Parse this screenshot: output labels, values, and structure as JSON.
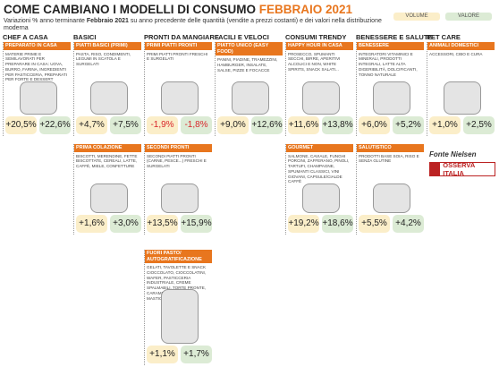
{
  "header": {
    "title": "COME CAMBIANO I MODELLI DI CONSUMO",
    "title_highlight": "FEBBRAIO 2021",
    "subtitle_start": "Variazioni % anno terminante",
    "subtitle_bold": "Febbraio 2021",
    "subtitle_end": "su anno precedente delle quantità (vendite a prezzi costanti) e dei valori nella distribuzione moderna"
  },
  "legend": {
    "volume": "VOLUME",
    "valore": "VALORE"
  },
  "columns": [
    {
      "name": "CHEF A CASA",
      "cards": [
        {
          "title": "PREPARATO IN CASA",
          "text": "MATERIE PRIME E SEMILAVORATI PER PREPARARE IN CASA: UOVA, BURRO, FARINA, INGREDIENTI PER PASTICCERIA, PREPARATI PER FORTE E DESSERT",
          "volume": "+20,5%",
          "valore": "+22,6%"
        }
      ]
    },
    {
      "name": "BASICI",
      "cards": [
        {
          "title": "PIATTI BASICI (PRIMI)",
          "text": "PASTA, RISO, CONDIMENTI, LEGUMI IN SCATOLA E SURGELATI",
          "volume": "+4,7%",
          "valore": "+7,5%"
        },
        {
          "title": "PRIMA COLAZIONE",
          "text": "BISCOTTI, MERENDINE, FETTE BISCOTTATE, CEREALI, LATTE, CAFFÈ, MIELE, CONFETTURE",
          "volume": "+1,6%",
          "valore": "+3,0%"
        }
      ]
    },
    {
      "name": "PRONTI DA MANGIARE",
      "cards": [
        {
          "title": "PRIMI PIATTI PRONTI",
          "text": "PRIMI PIATTI PRONTI FRESCHI E SURGELATI",
          "volume": "-1,9%",
          "valore": "-1,8%"
        },
        {
          "title": "SECONDI PRONTI",
          "text": "SECONDI PIATTI PRONTI (CARNE, PESCE...) FRESCHI E SURGELATI",
          "volume": "+13,5%",
          "valore": "+15,9%"
        },
        {
          "title": "FUORI PASTO/ AUTOGRATIFICAZIONE",
          "text": "GELATI, TAVOLETTE E SNACK CIOCCOLATO, CIOCCOLATINI, WAFER, PASTICCERIA INDUSTRIALE, CREME SPALMABILI, TORTE PRONTE, CARAMELLE, GOMME DA MASTICARE",
          "volume": "+1,1%",
          "valore": "+1,7%"
        }
      ]
    },
    {
      "name": "FACILI E VELOCI",
      "cards": [
        {
          "title": "PIATTO UNICO (EASY FOOD)",
          "text": "PANINI, PIADINE, TRAMEZZINI, HAMBURGER, INSALATE, SALSE, PIZZE E FOCACCE",
          "volume": "+9,0%",
          "valore": "+12,6%"
        }
      ]
    },
    {
      "name": "CONSUMI TRENDY",
      "cards": [
        {
          "title": "HAPPY HOUR IN CASA",
          "text": "PROSECCO, SPUMANTI SECCHI, BIRRE, APERITIVI ALCOLICI E NON, WHITE SPIRITS, SNACK SALATI...",
          "volume": "+11,6%",
          "valore": "+13,8%"
        },
        {
          "title": "GOURMET",
          "text": "SALMONE, CAVIALE, FUNGHI PORCINI, ZAFFERANO, PINOLI, TARTUFI, CHAMPAGNE, SPUMANTI CLASSICI, VINI GIOVANI, CAPSULE/CIALDE CAFFÈ",
          "volume": "+19,2%",
          "valore": "+18,6%"
        }
      ]
    },
    {
      "name": "BENESSERE E SALUTE",
      "cards": [
        {
          "title": "BENESSERE",
          "text": "INTEGRATORI VITAMINICI E MINERALI, PRODOTTI INTEGRALI, LATTE ALTA DIGERIBILITÀ, DOLCIFICANTI, TONNO NATURALE",
          "volume": "+6,0%",
          "valore": "+5,2%"
        },
        {
          "title": "SALUTISTICO",
          "text": "PRODOTTI BASE SOIA, RISO E SENZA GLUTINE",
          "volume": "+5,5%",
          "valore": "+4,2%"
        }
      ]
    },
    {
      "name": "PET CARE",
      "cards": [
        {
          "title": "ANIMALI DOMESTICI",
          "text": "ACCESSORI, CIBO E CURA",
          "volume": "+1,0%",
          "valore": "+2,5%"
        }
      ]
    }
  ],
  "source": "Fonte Nielsen",
  "logo": "OSSERVA ITALIA"
}
